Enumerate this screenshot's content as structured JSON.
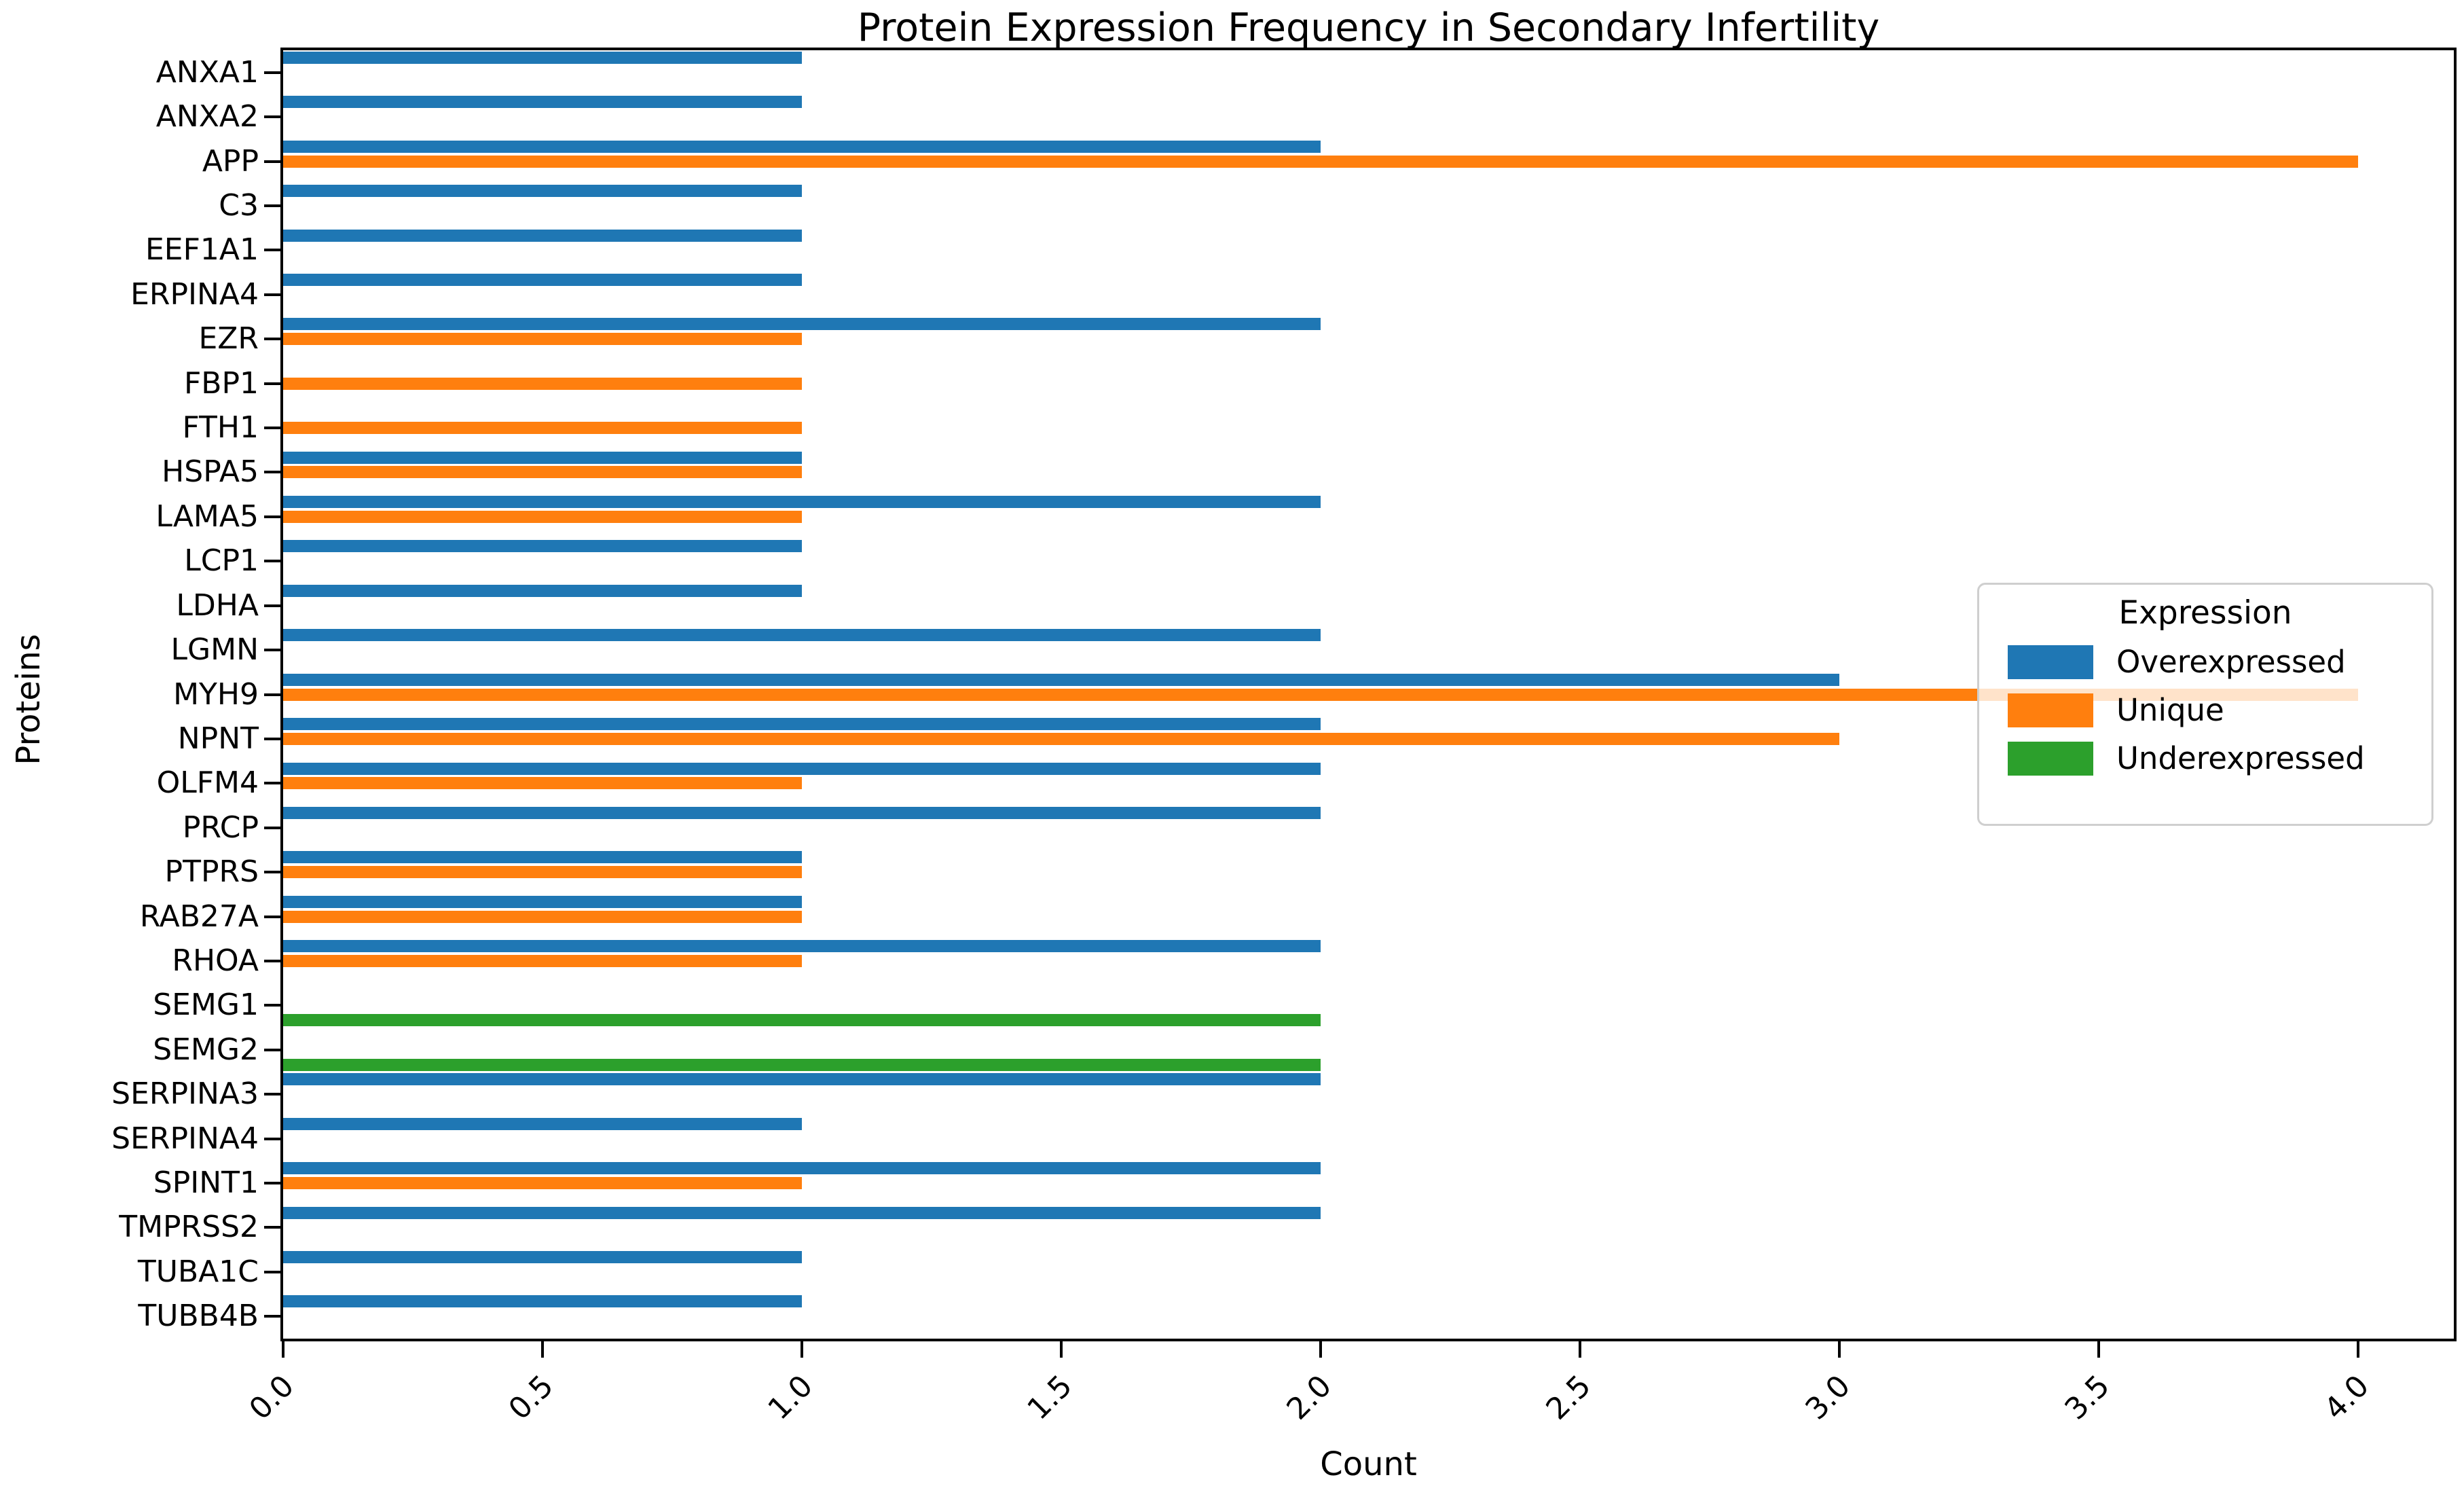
{
  "figure": {
    "background": "#ffffff"
  },
  "chart_data": {
    "type": "bar",
    "orientation": "horizontal",
    "title": "Protein Expression Frequency in Secondary Infertility",
    "xlabel": "Count",
    "ylabel": "Proteins",
    "xlim": [
      0,
      4.2
    ],
    "xticks": [
      "0.0",
      "0.5",
      "1.0",
      "1.5",
      "2.0",
      "2.5",
      "3.0",
      "3.5",
      "4.0"
    ],
    "grid": false,
    "legend": {
      "title": "Expression",
      "position": "center right"
    },
    "categories": [
      "ANXA1",
      "ANXA2",
      "APP",
      "C3",
      "EEF1A1",
      "ERPINA4",
      "EZR",
      "FBP1",
      "FTH1",
      "HSPA5",
      "LAMA5",
      "LCP1",
      "LDHA",
      "LGMN",
      "MYH9",
      "NPNT",
      "OLFM4",
      "PRCP",
      "PTPRS",
      "RAB27A",
      "RHOA",
      "SEMG1",
      "SEMG2",
      "SERPINA3",
      "SERPINA4",
      "SPINT1",
      "TMPRSS2",
      "TUBA1C",
      "TUBB4B"
    ],
    "series": [
      {
        "name": "Overexpressed",
        "color": "#1f77b4",
        "values": [
          1,
          1,
          2,
          1,
          1,
          1,
          2,
          0,
          0,
          1,
          2,
          1,
          1,
          2,
          3,
          2,
          2,
          2,
          1,
          1,
          2,
          0,
          0,
          2,
          1,
          2,
          2,
          1,
          1
        ]
      },
      {
        "name": "Unique",
        "color": "#ff7f0e",
        "values": [
          0,
          0,
          4,
          0,
          0,
          0,
          1,
          1,
          1,
          1,
          1,
          0,
          0,
          0,
          4,
          3,
          1,
          0,
          1,
          1,
          1,
          0,
          0,
          0,
          0,
          1,
          0,
          0,
          0
        ]
      },
      {
        "name": "Underexpressed",
        "color": "#2ca02c",
        "values": [
          0,
          0,
          0,
          0,
          0,
          0,
          0,
          0,
          0,
          0,
          0,
          0,
          0,
          0,
          0,
          0,
          0,
          0,
          0,
          0,
          0,
          2,
          2,
          0,
          0,
          0,
          0,
          0,
          0
        ]
      }
    ]
  }
}
